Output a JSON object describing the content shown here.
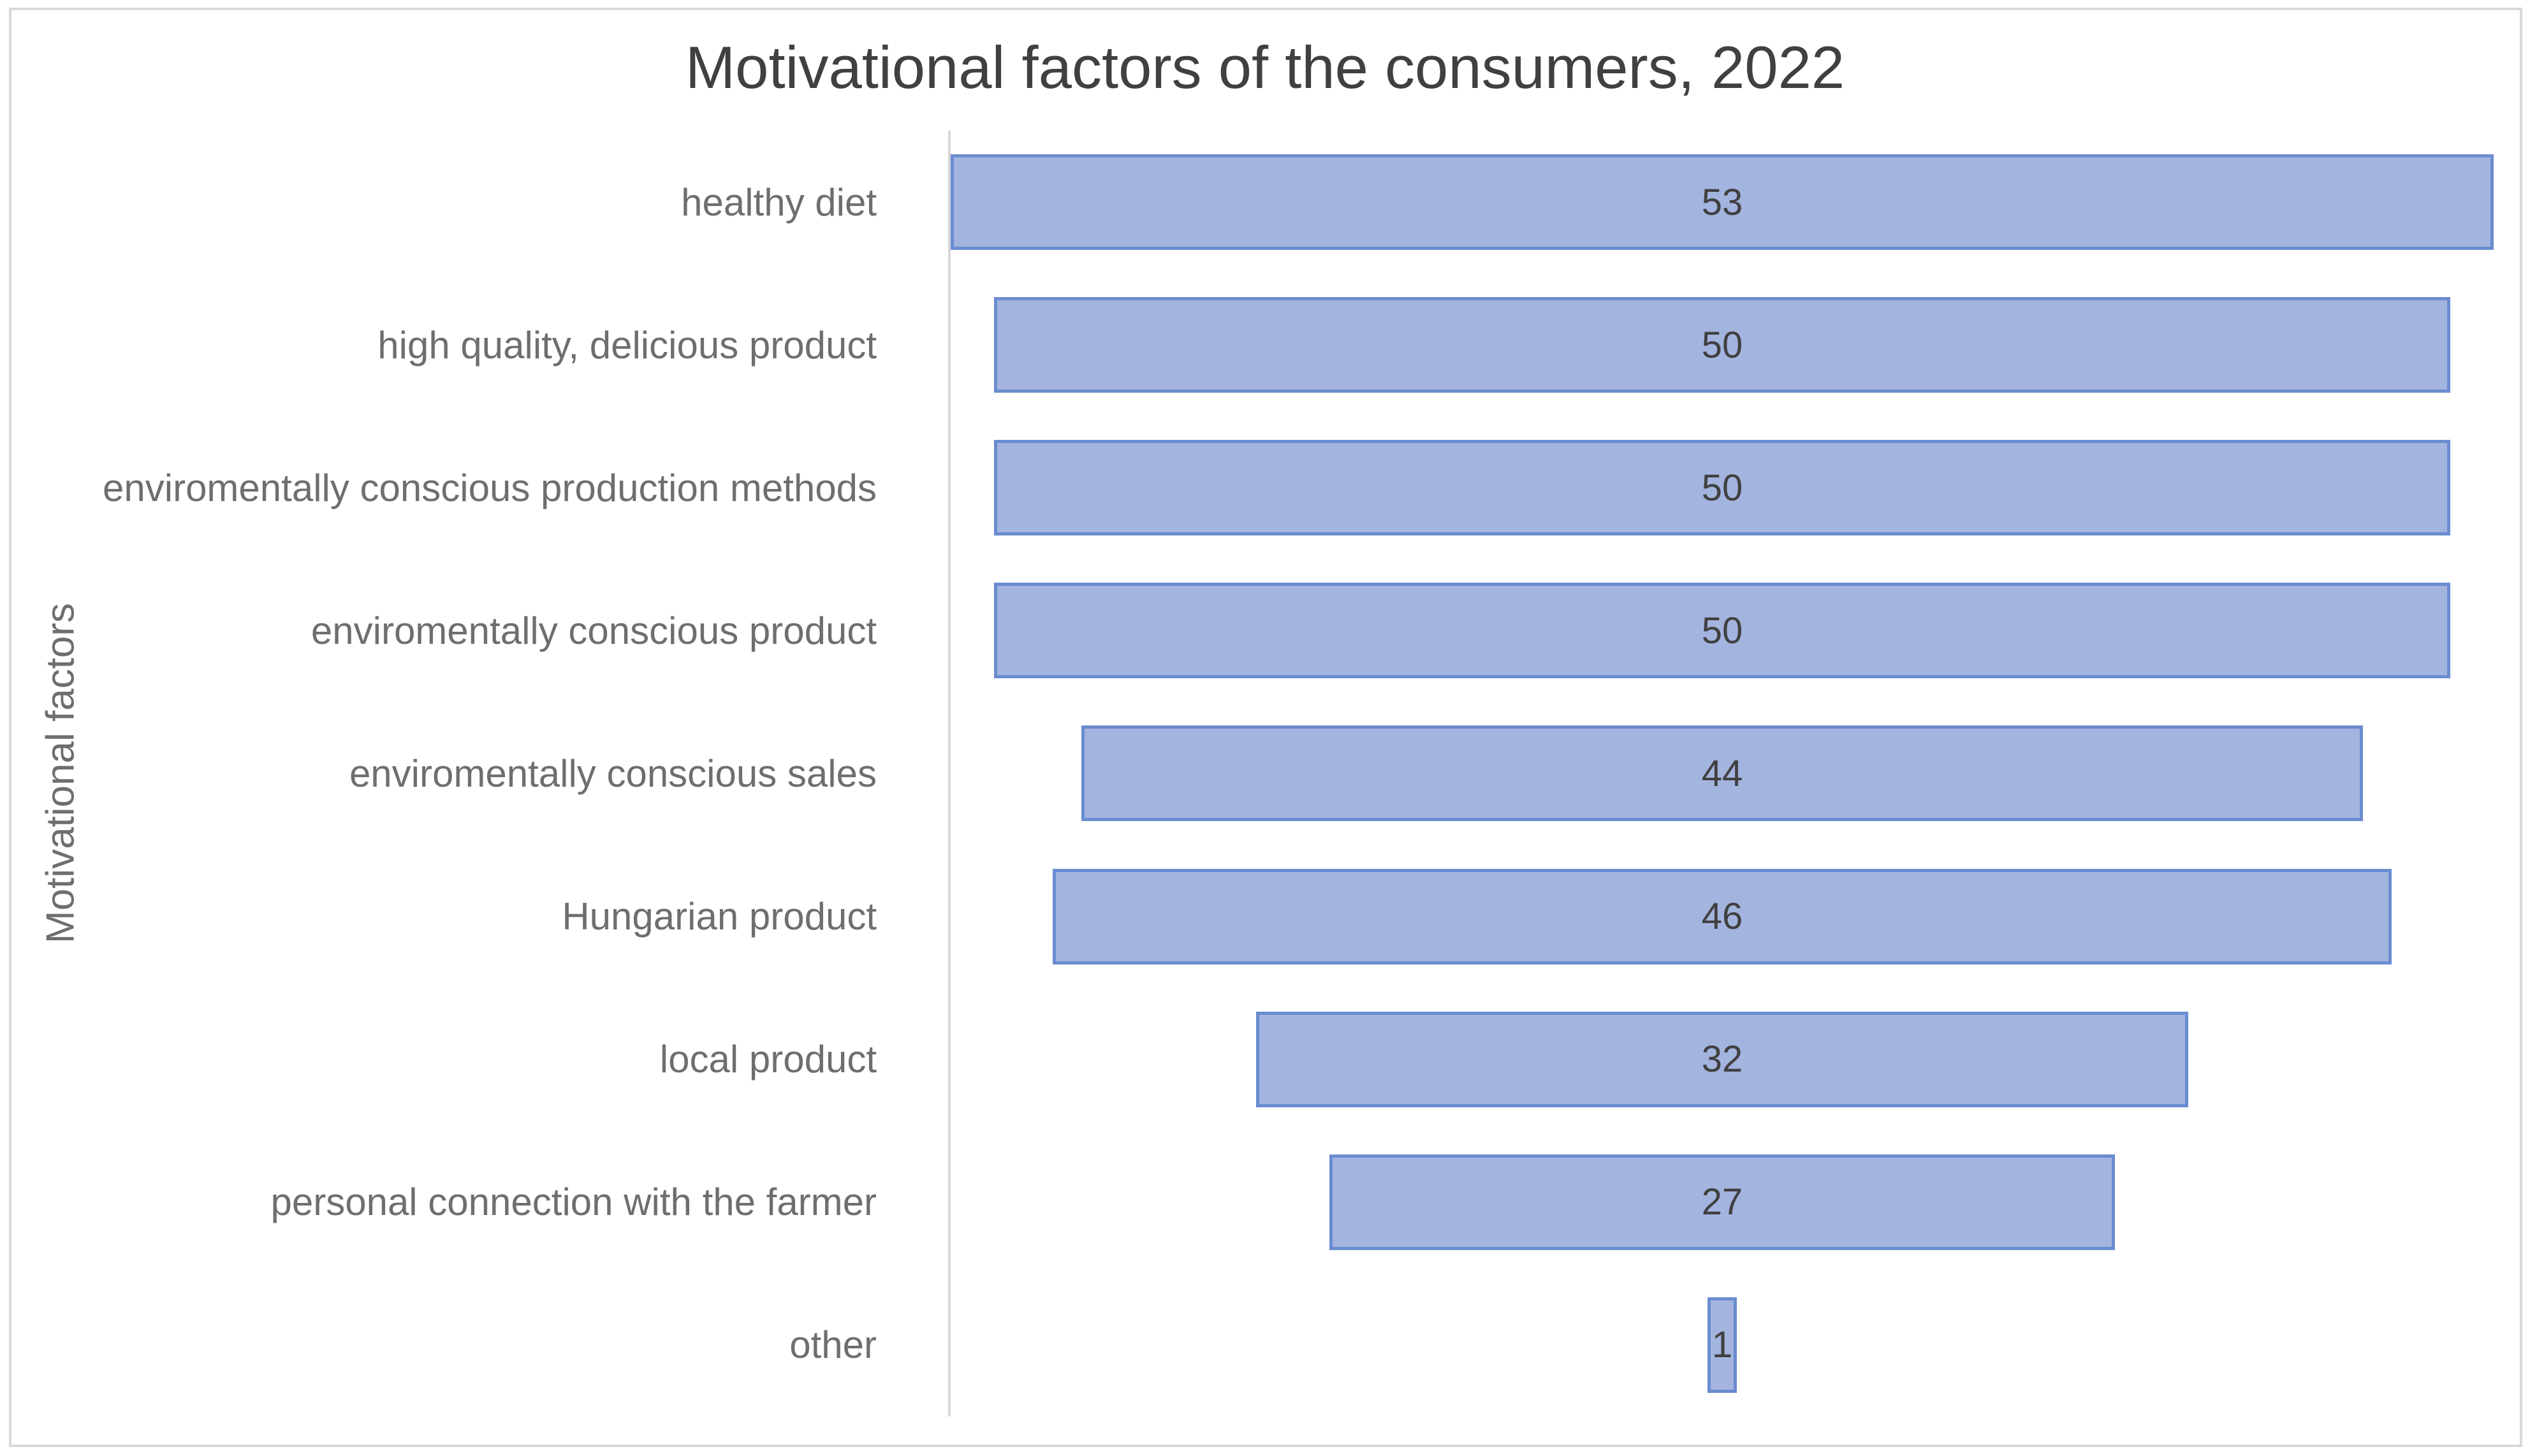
{
  "chart_data": {
    "type": "bar",
    "subtype": "funnel-horizontal-centered",
    "title": "Motivational factors of the consumers, 2022",
    "xlabel": "",
    "ylabel": "Motivational factors",
    "categories": [
      "healthy diet",
      "high quality, delicious product",
      "enviromentally conscious production methods",
      "enviromentally conscious product",
      "enviromentally conscious sales",
      "Hungarian product",
      "local product",
      "personal connection with the farmer",
      "other"
    ],
    "values": [
      53,
      50,
      50,
      50,
      44,
      46,
      32,
      27,
      1
    ],
    "xlim": [
      0,
      53
    ],
    "grid": false,
    "legend_position": "none",
    "data_labels": "center-inside",
    "colors": {
      "bar_fill": "#A3B4DF",
      "bar_border": "#6A8CD0",
      "title_color": "#404040",
      "category_label_color": "#6E6E6E",
      "value_label_color": "#404040",
      "axis_line_color": "#D6D6D6",
      "frame_border_color": "#D9D9D9",
      "background": "#FFFFFF"
    }
  }
}
